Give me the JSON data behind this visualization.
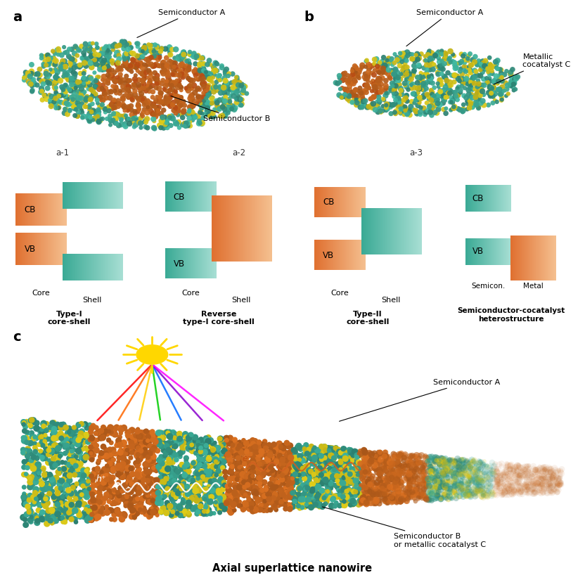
{
  "bg_color": "#ffffff",
  "teal_dark": "#2a9080",
  "teal_mid": "#3aaa95",
  "teal_light": "#a8dfd4",
  "yellow": "#ddc820",
  "orange_dark": "#c85010",
  "orange_mid": "#e07030",
  "orange_light": "#f5c090",
  "sub_labels_a": [
    "a-1",
    "a-2",
    "a-3"
  ],
  "type_labels": [
    "Type-I\ncore-shell",
    "Reverse\ntype-I core-shell",
    "Type-II\ncore-shell"
  ],
  "semicon_label": "Semiconductor-cocatalyst\nheterostructure",
  "axial_label": "Axial superlattice nanowire",
  "semicon_metal_label": "Semicon.  Metal",
  "core_label": "Core",
  "shell_label": "Shell",
  "semiconductor_a": "Semiconductor A",
  "semiconductor_b": "Semiconductor B",
  "metallic_c": "Metallic\ncocatalyst C",
  "semiconductor_b_or_c": "Semiconductor B\nor metallic cocatalyst C"
}
